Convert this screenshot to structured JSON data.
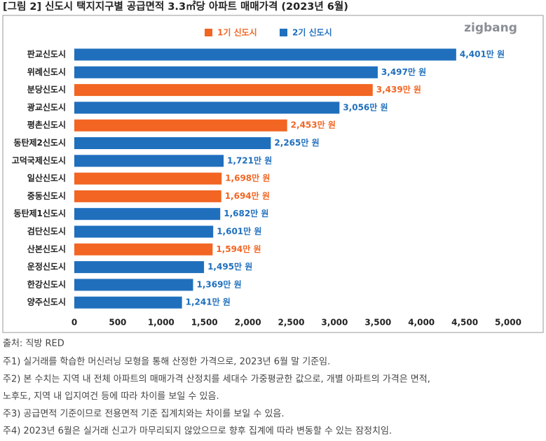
{
  "chart_data": {
    "type": "bar",
    "orientation": "horizontal",
    "title": "[그림 2] 신도시 택지지구별 공급면적 3.3㎡당 아파트 매매가격 (2023년 6월)",
    "categories": [
      "판교신도시",
      "위례신도시",
      "분당신도시",
      "광교신도시",
      "평촌신도시",
      "동탄제2신도시",
      "고덕국제신도시",
      "일산신도시",
      "중동신도시",
      "동탄제1신도시",
      "검단신도시",
      "산본신도시",
      "운정신도시",
      "한강신도시",
      "양주신도시"
    ],
    "series": [
      {
        "name": "1기 신도시",
        "color": "#f26522",
        "values": [
          null,
          null,
          3439,
          null,
          2453,
          null,
          null,
          1698,
          1694,
          null,
          null,
          1594,
          null,
          null,
          null
        ],
        "value_labels": [
          null,
          null,
          "3,439만 원",
          null,
          "2,453만 원",
          null,
          null,
          "1,698만 원",
          "1,694만 원",
          null,
          null,
          "1,594만 원",
          null,
          null,
          null
        ]
      },
      {
        "name": "2기 신도시",
        "color": "#1f6fbd",
        "values": [
          4401,
          3497,
          null,
          3056,
          null,
          2265,
          1721,
          null,
          null,
          1682,
          1601,
          null,
          1495,
          1369,
          1241
        ],
        "value_labels": [
          "4,401만 원",
          "3,497만 원",
          null,
          "3,056만 원",
          null,
          "2,265만 원",
          "1,721만 원",
          null,
          null,
          "1,682만 원",
          "1,601만 원",
          null,
          "1,495만 원",
          "1,369만 원",
          "1,241만 원"
        ]
      }
    ],
    "xlim": [
      0,
      5000
    ],
    "xticks": [
      0,
      500,
      {
        "value": 1000,
        "label": "1,000"
      },
      {
        "value": 1500,
        "label": "1,500"
      },
      {
        "value": 2000,
        "label": "2,000"
      },
      {
        "value": 2500,
        "label": "2,500"
      },
      {
        "value": 3000,
        "label": "3,000"
      },
      {
        "value": 3500,
        "label": "3,500"
      },
      {
        "value": 4000,
        "label": "4,000"
      },
      {
        "value": 4500,
        "label": "4,500"
      },
      {
        "value": 5000,
        "label": "5,000"
      }
    ],
    "legend": "top"
  },
  "logo": "zigbang",
  "source": "출처: 직방 RED",
  "notes": [
    [
      "주1) 실거래를 학습한 머신러닝 모형을 통해 산정한 가격으로, 2023년 6월 말 기준임."
    ],
    [
      "주2) 본 수치는 지역 내 전체 아파트의 매매가격 산정치를 세대수 가중평균한 값으로, 개별 아파트의 가격은 면적,",
      "노후도, 지역 내 입지여건 등에 따라 차이를 보일 수 있음."
    ],
    [
      "주3) 공급면적 기준이므로 전용면적 기준 집계치와는 차이를 보일 수 있음."
    ],
    [
      "주4) 2023년 6월은 실거래 신고가 마무리되지 않았으므로 향후 집계에 따라 변동할 수 있는 잠정치임."
    ]
  ]
}
